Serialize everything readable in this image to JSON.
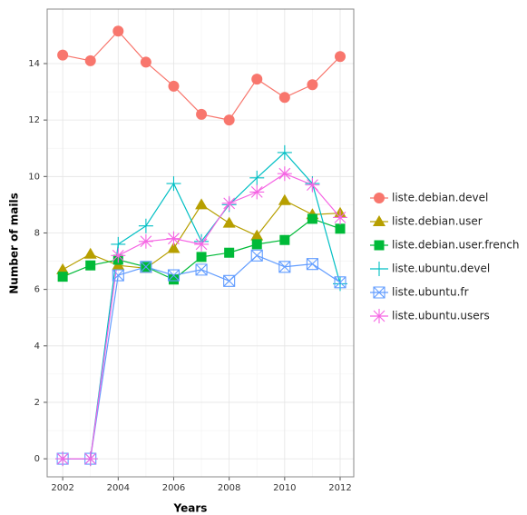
{
  "chart_data": {
    "type": "line",
    "x_label": "Years",
    "y_label": "Number of mails",
    "x": [
      2002,
      2003,
      2004,
      2005,
      2006,
      2007,
      2008,
      2009,
      2010,
      2011,
      2012
    ],
    "series": [
      {
        "name": "liste.debian.devel",
        "color": "#F8766D",
        "marker": "circle",
        "values": [
          14.3,
          14.1,
          15.15,
          14.05,
          13.2,
          12.2,
          12.0,
          13.45,
          12.8,
          13.25,
          14.25
        ]
      },
      {
        "name": "liste.debian.user",
        "color": "#B79F00",
        "marker": "triangle",
        "values": [
          6.7,
          7.25,
          6.85,
          6.75,
          7.45,
          9.0,
          8.35,
          7.9,
          9.15,
          8.65,
          8.7
        ]
      },
      {
        "name": "liste.debian.user.french",
        "color": "#00BA38",
        "marker": "square",
        "values": [
          6.45,
          6.85,
          7.05,
          6.8,
          6.35,
          7.15,
          7.3,
          7.6,
          7.75,
          8.5,
          8.15
        ]
      },
      {
        "name": "liste.ubuntu.devel",
        "color": "#00BFC4",
        "marker": "plus",
        "values": [
          0,
          0,
          7.6,
          8.25,
          9.75,
          7.7,
          9.0,
          9.95,
          10.85,
          9.75,
          6.2
        ]
      },
      {
        "name": "liste.ubuntu.fr",
        "color": "#619CFF",
        "marker": "boxcross",
        "values": [
          0,
          0,
          6.5,
          6.8,
          6.5,
          6.7,
          6.3,
          7.2,
          6.8,
          6.9,
          6.25
        ]
      },
      {
        "name": "liste.ubuntu.users",
        "color": "#F564E3",
        "marker": "asterisk",
        "values": [
          0,
          0,
          7.2,
          7.7,
          7.8,
          7.6,
          9.05,
          9.45,
          10.1,
          9.7,
          8.55
        ]
      }
    ],
    "xlim": [
      2001.44,
      2012.49
    ],
    "ylim": [
      -0.64,
      15.93
    ],
    "xticks": [
      2002,
      2004,
      2006,
      2008,
      2010,
      2012
    ],
    "yticks": [
      0,
      2,
      4,
      6,
      8,
      10,
      12,
      14
    ],
    "grid": true,
    "legend": "right"
  }
}
